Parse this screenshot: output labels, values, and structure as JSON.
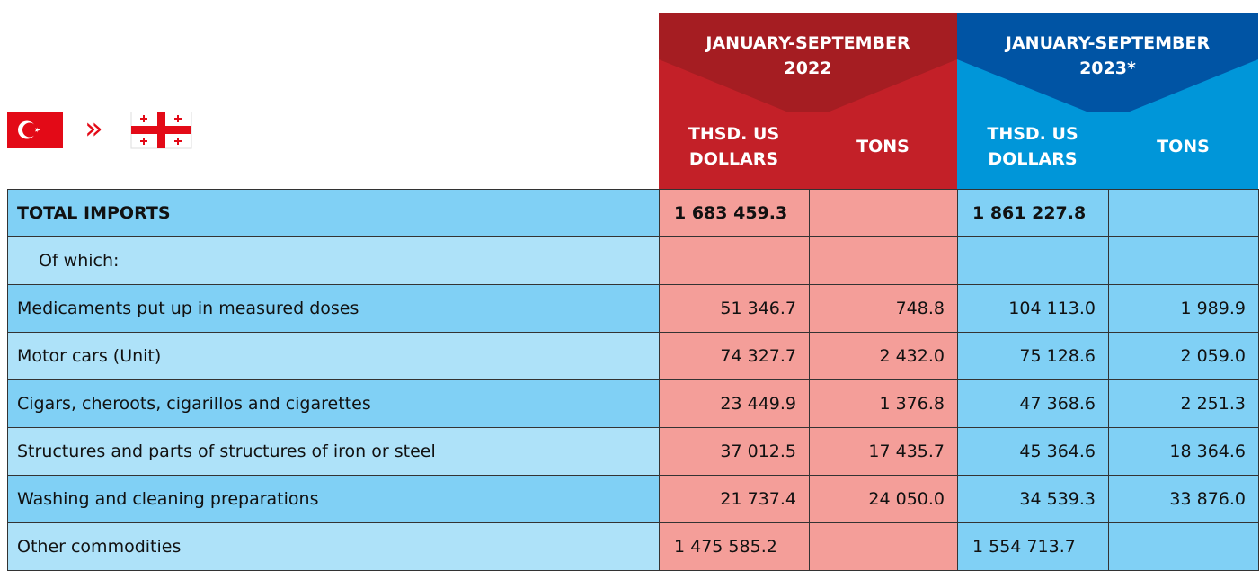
{
  "header": {
    "periods": [
      {
        "title": "JANUARY-SEPTEMBER 2022",
        "columns": [
          "THSD. US DOLLARS",
          "TONS"
        ]
      },
      {
        "title": "JANUARY-SEPTEMBER 2023*",
        "columns": [
          "THSD. US DOLLARS",
          "TONS"
        ]
      }
    ]
  },
  "table": {
    "rows": [
      {
        "label": "TOTAL IMPORTS",
        "cells": [
          "1 683 459.3",
          null,
          "1 861 227.8",
          null
        ]
      },
      {
        "label": "Of which:",
        "cells": [
          null,
          null,
          null,
          null
        ]
      },
      {
        "label": "Medicaments put up in measured doses",
        "cells": [
          "51 346.7",
          "748.8",
          "104 113.0",
          "1 989.9"
        ]
      },
      {
        "label": "Motor cars (Unit)",
        "cells": [
          "74 327.7",
          "2 432.0",
          "75 128.6",
          "2 059.0"
        ]
      },
      {
        "label": "Cigars, cheroots, cigarillos and cigarettes",
        "cells": [
          "23 449.9",
          "1 376.8",
          "47 368.6",
          "2 251.3"
        ]
      },
      {
        "label": "Structures and parts of structures of iron or steel",
        "cells": [
          "37 012.5",
          "17 435.7",
          "45 364.6",
          "18 364.6"
        ]
      },
      {
        "label": "Washing and cleaning preparations",
        "cells": [
          "21 737.4",
          "24 050.0",
          "34 539.3",
          "33 876.0"
        ]
      },
      {
        "label": "Other commodities",
        "cells": [
          "1 475 585.2",
          null,
          "1 554 713.7",
          null
        ]
      }
    ]
  }
}
